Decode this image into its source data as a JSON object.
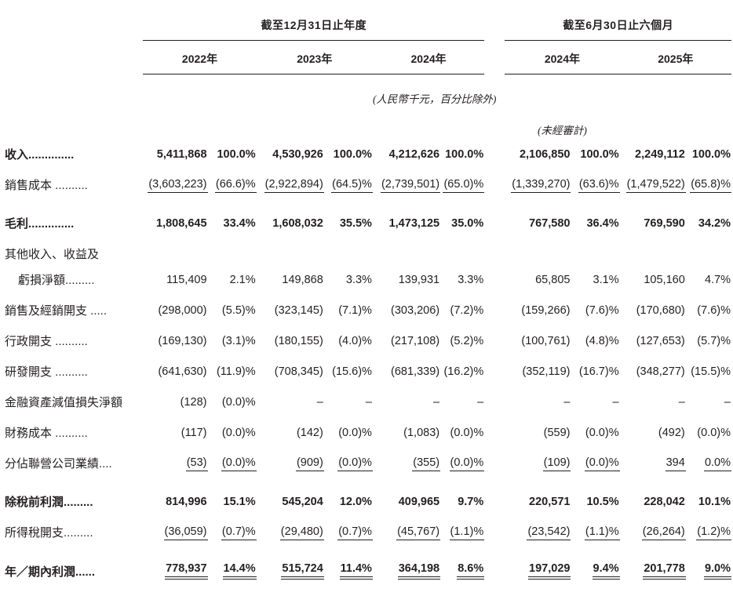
{
  "colors": {
    "text": "#231f20",
    "background": "#ffffff",
    "rule": "#231f20"
  },
  "table": {
    "annual_group": "截至12月31日止年度",
    "interim_group": "截至6月30日止六個月",
    "years": [
      "2022年",
      "2023年",
      "2024年",
      "2024年",
      "2025年"
    ],
    "currency_note": "(人民幣千元，百分比除外)",
    "unaudited_note": "(未經審計)",
    "rows": [
      {
        "label_lines": [
          "收入.............."
        ],
        "bold": true,
        "rule": "none",
        "cells": [
          "5,411,868",
          "100.0%",
          "4,530,926",
          "100.0%",
          "4,212,626",
          "100.0%",
          "2,106,850",
          "100.0%",
          "2,249,112",
          "100.0%"
        ]
      },
      {
        "label_lines": [
          "銷售成本 .........."
        ],
        "bold": false,
        "rule": "single",
        "cells": [
          "(3,603,223)",
          "(66.6)%",
          "(2,922,894)",
          "(64.5)%",
          "(2,739,501)",
          "(65.0)%",
          "(1,339,270)",
          "(63.6)%",
          "(1,479,522)",
          "(65.8)%"
        ]
      },
      {
        "label_lines": [
          "毛利.............."
        ],
        "bold": true,
        "rule": "none",
        "cells": [
          "1,808,645",
          "33.4%",
          "1,608,032",
          "35.5%",
          "1,473,125",
          "35.0%",
          "767,580",
          "36.4%",
          "769,590",
          "34.2%"
        ]
      },
      {
        "label_lines": [
          "其他收入、收益及",
          "虧損淨額........."
        ],
        "bold": false,
        "rule": "none",
        "cells": [
          "115,409",
          "2.1%",
          "149,868",
          "3.3%",
          "139,931",
          "3.3%",
          "65,805",
          "3.1%",
          "105,160",
          "4.7%"
        ]
      },
      {
        "label_lines": [
          "銷售及經銷開支 ....."
        ],
        "bold": false,
        "rule": "none",
        "cells": [
          "(298,000)",
          "(5.5)%",
          "(323,145)",
          "(7.1)%",
          "(303,206)",
          "(7.2)%",
          "(159,266)",
          "(7.6)%",
          "(170,680)",
          "(7.6)%"
        ]
      },
      {
        "label_lines": [
          "行政開支 .........."
        ],
        "bold": false,
        "rule": "none",
        "cells": [
          "(169,130)",
          "(3.1)%",
          "(180,155)",
          "(4.0)%",
          "(217,108)",
          "(5.2)%",
          "(100,761)",
          "(4.8)%",
          "(127,653)",
          "(5.7)%"
        ]
      },
      {
        "label_lines": [
          "研發開支 .........."
        ],
        "bold": false,
        "rule": "none",
        "cells": [
          "(641,630)",
          "(11.9)%",
          "(708,345)",
          "(15.6)%",
          "(681,339)",
          "(16.2)%",
          "(352,119)",
          "(16.7)%",
          "(348,277)",
          "(15.5)%"
        ]
      },
      {
        "label_lines": [
          "金融資產減值損失淨額"
        ],
        "bold": false,
        "rule": "none",
        "cells": [
          "(128)",
          "(0.0)%",
          "–",
          "–",
          "–",
          "–",
          "–",
          "–",
          "–",
          "–"
        ]
      },
      {
        "label_lines": [
          "財務成本 .........."
        ],
        "bold": false,
        "rule": "none",
        "cells": [
          "(117)",
          "(0.0)%",
          "(142)",
          "(0.0)%",
          "(1,083)",
          "(0.0)%",
          "(559)",
          "(0.0)%",
          "(492)",
          "(0.0)%"
        ]
      },
      {
        "label_lines": [
          "分佔聯營公司業績...."
        ],
        "bold": false,
        "rule": "single",
        "cells": [
          "(53)",
          "(0.0)%",
          "(909)",
          "(0.0)%",
          "(355)",
          "(0.0)%",
          "(109)",
          "(0.0)%",
          "394",
          "0.0%"
        ]
      },
      {
        "label_lines": [
          "除稅前利潤........."
        ],
        "bold": true,
        "rule": "none",
        "cells": [
          "814,996",
          "15.1%",
          "545,204",
          "12.0%",
          "409,965",
          "9.7%",
          "220,571",
          "10.5%",
          "228,042",
          "10.1%"
        ]
      },
      {
        "label_lines": [
          "所得稅開支........."
        ],
        "bold": false,
        "rule": "single",
        "cells": [
          "(36,059)",
          "(0.7)%",
          "(29,480)",
          "(0.7)%",
          "(45,767)",
          "(1.1)%",
          "(23,542)",
          "(1.1)%",
          "(26,264)",
          "(1.2)%"
        ]
      },
      {
        "label_lines": [
          "年／期內利潤......"
        ],
        "bold": true,
        "rule": "double",
        "cells": [
          "778,937",
          "14.4%",
          "515,724",
          "11.4%",
          "364,198",
          "8.6%",
          "197,029",
          "9.4%",
          "201,778",
          "9.0%"
        ]
      }
    ]
  }
}
